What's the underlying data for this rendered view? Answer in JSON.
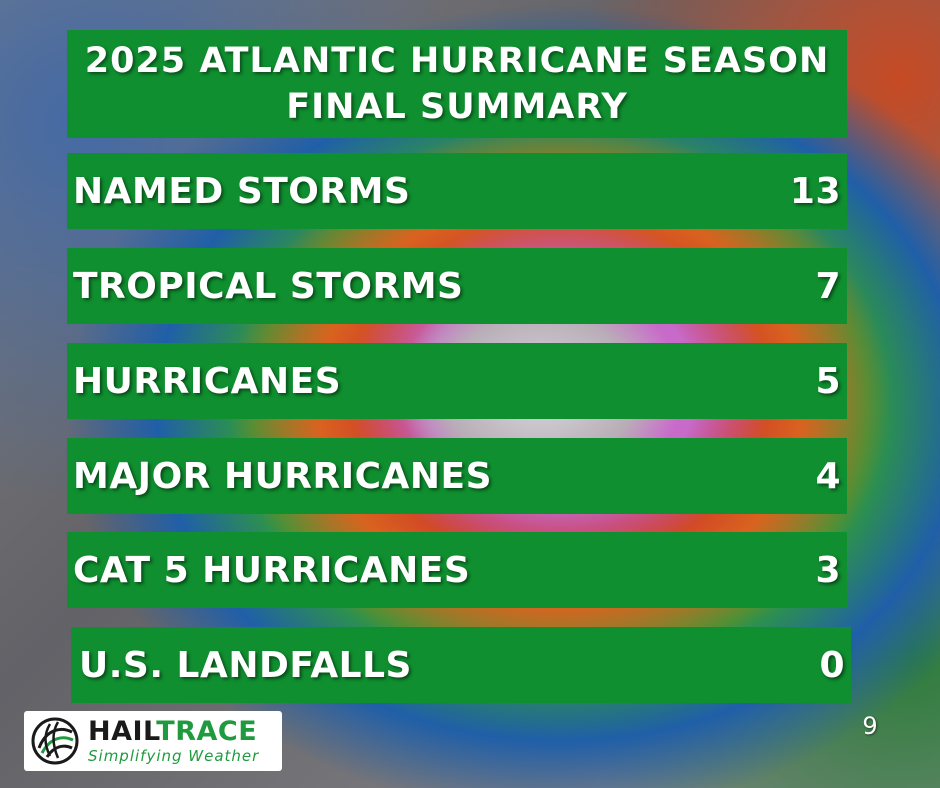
{
  "title": {
    "line1": "2025 ATLANTIC HURRICANE SEASON",
    "line2": "FINAL SUMMARY"
  },
  "stats": [
    {
      "label": "NAMED STORMS",
      "value": "13"
    },
    {
      "label": "TROPICAL STORMS",
      "value": "7"
    },
    {
      "label": "HURRICANES",
      "value": "5"
    },
    {
      "label": "MAJOR HURRICANES",
      "value": "4"
    },
    {
      "label": "CAT 5 HURRICANES",
      "value": "3"
    },
    {
      "label": "U.S. LANDFALLS",
      "value": "0"
    }
  ],
  "logo": {
    "name_part1": "HAIL",
    "name_part2": "TRACE",
    "tagline": "Simplifying Weather",
    "icon": "hailtrace-logo-icon"
  },
  "page_number": "9",
  "colors": {
    "panel_green": "#0f8f2f",
    "brand_green": "#1f9a3e",
    "text": "#ffffff"
  }
}
